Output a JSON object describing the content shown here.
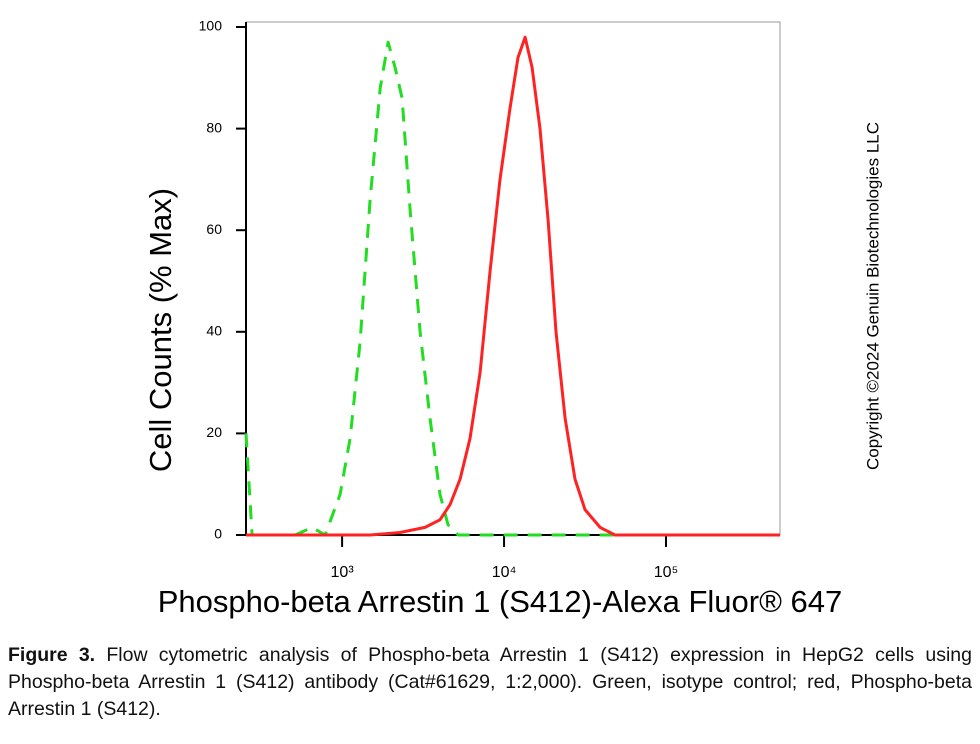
{
  "chart_data": {
    "type": "line",
    "ylabel": "Cell Counts (% Max)",
    "xlabel": "Phospho-beta Arrestin 1 (S412)-Alexa Fluor® 647",
    "side_note": "Copyright ©2024 Genuin Biotechnologies LLC",
    "xscale": "log",
    "xlim": [
      255,
      505800
    ],
    "xticks": [
      {
        "value": 1000,
        "label": "10³"
      },
      {
        "value": 10000,
        "label": "10⁴"
      },
      {
        "value": 100000,
        "label": "10⁵"
      }
    ],
    "ylim": [
      0,
      100
    ],
    "yticks": [
      0,
      20,
      40,
      60,
      80,
      100
    ],
    "series": [
      {
        "color": "#22dd22",
        "dash": true,
        "x": [
          255,
          278,
          513,
          653,
          785,
          972,
          1120,
          1291,
          1489,
          1718,
          1924,
          2125,
          2346,
          2630,
          3029,
          3491,
          4025,
          4510,
          5200,
          505800
        ],
        "values": [
          20,
          0,
          0,
          1.5,
          0,
          8,
          19,
          38,
          66,
          88,
          97,
          92,
          86,
          64,
          40,
          23,
          8,
          2,
          0,
          0
        ]
      },
      {
        "color": "#ff2222",
        "dash": false,
        "x": [
          255,
          1489,
          2280,
          3252,
          4025,
          4645,
          5350,
          6166,
          7112,
          8204,
          9440,
          10890,
          12190,
          13490,
          14890,
          16680,
          18700,
          20940,
          23820,
          27420,
          31620,
          39170,
          48420,
          505800
        ],
        "values": [
          0,
          0,
          0.5,
          1.5,
          3,
          6,
          11,
          19,
          32,
          52,
          70,
          84,
          94,
          98,
          92,
          80,
          62,
          40,
          23,
          11,
          5,
          1.5,
          0,
          0
        ]
      }
    ]
  },
  "caption": {
    "label": "Figure 3.",
    "text": "Flow cytometric analysis of Phospho-beta Arrestin 1 (S412) expression in HepG2 cells using Phospho-beta Arrestin 1 (S412) antibody (Cat#61629, 1:2,000). Green, isotype control; red, Phospho-beta Arrestin 1 (S412)."
  }
}
